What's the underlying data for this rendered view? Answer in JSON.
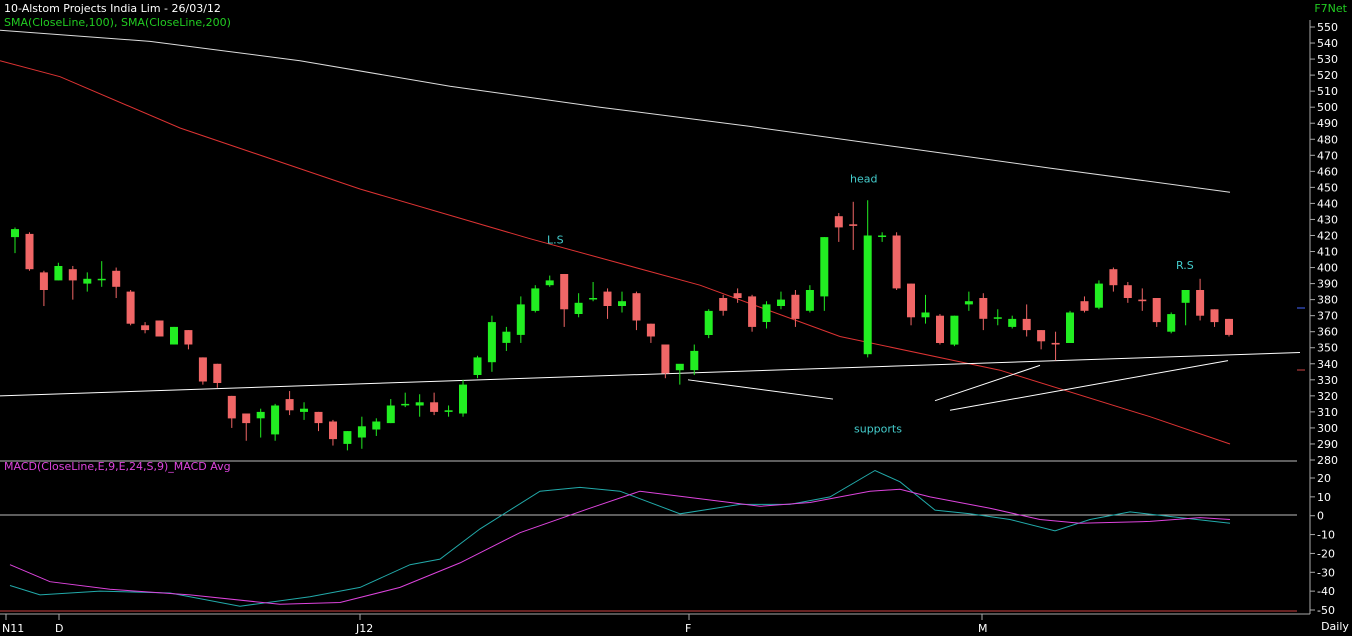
{
  "header": {
    "title": "10-Alstom Projects India Lim - 26/03/12",
    "indicators": "SMA(CloseLine,100), SMA(CloseLine,200)",
    "brand": "F7Net",
    "period": "Daily"
  },
  "colors": {
    "background": "#000000",
    "up": "#22ee22",
    "down": "#f06666",
    "sma100": "#dd3333",
    "sma200": "#dddddd",
    "macd": "#22aaaa",
    "macd_avg": "#dd44dd",
    "text_header": "#ffffff",
    "text_green": "#22cc22",
    "annotation": "#44cccc",
    "axis": "#aaaaaa"
  },
  "chart_data": [
    {
      "type": "candlestick",
      "title": "10-Alstom Projects India Lim - 26/03/12",
      "ylim": [
        280,
        550
      ],
      "yticks": [
        280,
        290,
        300,
        310,
        320,
        330,
        340,
        350,
        360,
        370,
        380,
        390,
        400,
        410,
        420,
        430,
        440,
        450,
        460,
        470,
        480,
        490,
        500,
        510,
        520,
        530,
        540,
        550
      ],
      "xtick_labels": [
        "N11",
        "D",
        "J12",
        "F",
        "M"
      ],
      "candles": [
        {
          "o": 419,
          "h": 425,
          "l": 409,
          "c": 424
        },
        {
          "o": 421,
          "h": 422,
          "l": 398,
          "c": 399
        },
        {
          "o": 397,
          "h": 398,
          "l": 376,
          "c": 386
        },
        {
          "o": 392,
          "h": 403,
          "l": 392,
          "c": 401
        },
        {
          "o": 399,
          "h": 401,
          "l": 380,
          "c": 392
        },
        {
          "o": 390,
          "h": 397,
          "l": 385,
          "c": 393
        },
        {
          "o": 393,
          "h": 404,
          "l": 388,
          "c": 393
        },
        {
          "o": 398,
          "h": 400,
          "l": 381,
          "c": 388
        },
        {
          "o": 385,
          "h": 386,
          "l": 364,
          "c": 365
        },
        {
          "o": 364,
          "h": 366,
          "l": 359,
          "c": 361
        },
        {
          "o": 367,
          "h": 367,
          "l": 357,
          "c": 357
        },
        {
          "o": 352,
          "h": 363,
          "l": 352,
          "c": 363
        },
        {
          "o": 361,
          "h": 361,
          "l": 349,
          "c": 352
        },
        {
          "o": 344,
          "h": 344,
          "l": 327,
          "c": 329
        },
        {
          "o": 340,
          "h": 340,
          "l": 325,
          "c": 328
        },
        {
          "o": 320,
          "h": 320,
          "l": 300,
          "c": 306
        },
        {
          "o": 309,
          "h": 309,
          "l": 292,
          "c": 303
        },
        {
          "o": 306,
          "h": 312,
          "l": 294,
          "c": 310
        },
        {
          "o": 296,
          "h": 315,
          "l": 292,
          "c": 314
        },
        {
          "o": 318,
          "h": 323,
          "l": 308,
          "c": 311
        },
        {
          "o": 310,
          "h": 316,
          "l": 305,
          "c": 312
        },
        {
          "o": 310,
          "h": 310,
          "l": 298,
          "c": 303
        },
        {
          "o": 304,
          "h": 305,
          "l": 289,
          "c": 293
        },
        {
          "o": 290,
          "h": 298,
          "l": 286,
          "c": 298
        },
        {
          "o": 294,
          "h": 307,
          "l": 287,
          "c": 301
        },
        {
          "o": 299,
          "h": 306,
          "l": 295,
          "c": 304
        },
        {
          "o": 303,
          "h": 318,
          "l": 303,
          "c": 314
        },
        {
          "o": 315,
          "h": 322,
          "l": 313,
          "c": 315
        },
        {
          "o": 314,
          "h": 321,
          "l": 307,
          "c": 316
        },
        {
          "o": 316,
          "h": 322,
          "l": 308,
          "c": 310
        },
        {
          "o": 310,
          "h": 314,
          "l": 307,
          "c": 311
        },
        {
          "o": 309,
          "h": 330,
          "l": 307,
          "c": 327
        },
        {
          "o": 333,
          "h": 345,
          "l": 331,
          "c": 344
        },
        {
          "o": 341,
          "h": 370,
          "l": 335,
          "c": 366
        },
        {
          "o": 353,
          "h": 363,
          "l": 348,
          "c": 360
        },
        {
          "o": 358,
          "h": 382,
          "l": 353,
          "c": 377
        },
        {
          "o": 373,
          "h": 389,
          "l": 372,
          "c": 387
        },
        {
          "o": 389,
          "h": 395,
          "l": 388,
          "c": 392
        },
        {
          "o": 396,
          "h": 396,
          "l": 363,
          "c": 374
        },
        {
          "o": 371,
          "h": 384,
          "l": 369,
          "c": 378
        },
        {
          "o": 381,
          "h": 391,
          "l": 379,
          "c": 381
        },
        {
          "o": 385,
          "h": 387,
          "l": 368,
          "c": 376
        },
        {
          "o": 376,
          "h": 385,
          "l": 372,
          "c": 379
        },
        {
          "o": 384,
          "h": 385,
          "l": 361,
          "c": 367
        },
        {
          "o": 365,
          "h": 365,
          "l": 353,
          "c": 357
        },
        {
          "o": 352,
          "h": 352,
          "l": 331,
          "c": 334
        },
        {
          "o": 336,
          "h": 339,
          "l": 327,
          "c": 340
        },
        {
          "o": 336,
          "h": 352,
          "l": 333,
          "c": 348
        },
        {
          "o": 358,
          "h": 374,
          "l": 356,
          "c": 373
        },
        {
          "o": 381,
          "h": 383,
          "l": 370,
          "c": 373
        },
        {
          "o": 384,
          "h": 387,
          "l": 378,
          "c": 381
        },
        {
          "o": 382,
          "h": 383,
          "l": 360,
          "c": 363
        },
        {
          "o": 366,
          "h": 379,
          "l": 362,
          "c": 377
        },
        {
          "o": 376,
          "h": 385,
          "l": 374,
          "c": 380
        },
        {
          "o": 383,
          "h": 386,
          "l": 363,
          "c": 368
        },
        {
          "o": 373,
          "h": 389,
          "l": 372,
          "c": 386
        },
        {
          "o": 382,
          "h": 419,
          "l": 373,
          "c": 419
        },
        {
          "o": 432,
          "h": 434,
          "l": 416,
          "c": 425
        },
        {
          "o": 427,
          "h": 441,
          "l": 411,
          "c": 426
        },
        {
          "o": 346,
          "h": 442,
          "l": 344,
          "c": 420
        },
        {
          "o": 420,
          "h": 422,
          "l": 416,
          "c": 420
        },
        {
          "o": 420,
          "h": 422,
          "l": 386,
          "c": 387
        },
        {
          "o": 390,
          "h": 390,
          "l": 364,
          "c": 369
        },
        {
          "o": 369,
          "h": 383,
          "l": 365,
          "c": 372
        },
        {
          "o": 370,
          "h": 371,
          "l": 352,
          "c": 353
        },
        {
          "o": 352,
          "h": 370,
          "l": 351,
          "c": 370
        },
        {
          "o": 377,
          "h": 385,
          "l": 373,
          "c": 379
        },
        {
          "o": 381,
          "h": 384,
          "l": 361,
          "c": 368
        },
        {
          "o": 369,
          "h": 374,
          "l": 364,
          "c": 369
        },
        {
          "o": 363,
          "h": 370,
          "l": 362,
          "c": 368
        },
        {
          "o": 368,
          "h": 377,
          "l": 357,
          "c": 361
        },
        {
          "o": 361,
          "h": 361,
          "l": 349,
          "c": 354
        },
        {
          "o": 353,
          "h": 360,
          "l": 342,
          "c": 352
        },
        {
          "o": 353,
          "h": 373,
          "l": 353,
          "c": 372
        },
        {
          "o": 379,
          "h": 382,
          "l": 372,
          "c": 373
        },
        {
          "o": 375,
          "h": 392,
          "l": 374,
          "c": 390
        },
        {
          "o": 399,
          "h": 400,
          "l": 385,
          "c": 389
        },
        {
          "o": 389,
          "h": 391,
          "l": 378,
          "c": 381
        },
        {
          "o": 380,
          "h": 387,
          "l": 373,
          "c": 379
        },
        {
          "o": 381,
          "h": 381,
          "l": 363,
          "c": 366
        },
        {
          "o": 360,
          "h": 372,
          "l": 359,
          "c": 371
        },
        {
          "o": 378,
          "h": 386,
          "l": 364,
          "c": 386
        },
        {
          "o": 386,
          "h": 393,
          "l": 367,
          "c": 370
        },
        {
          "o": 374,
          "h": 374,
          "l": 363,
          "c": 366
        },
        {
          "o": 368,
          "h": 368,
          "l": 357,
          "c": 358
        }
      ],
      "sma100": [
        [
          0,
          529
        ],
        [
          60,
          519
        ],
        [
          180,
          487
        ],
        [
          360,
          449
        ],
        [
          530,
          418
        ],
        [
          700,
          389
        ],
        [
          840,
          357
        ],
        [
          1000,
          336
        ],
        [
          1150,
          307
        ],
        [
          1230,
          290
        ]
      ],
      "sma200": [
        [
          0,
          548
        ],
        [
          150,
          541
        ],
        [
          300,
          529
        ],
        [
          450,
          513
        ],
        [
          600,
          500
        ],
        [
          750,
          488
        ],
        [
          900,
          475
        ],
        [
          1050,
          462
        ],
        [
          1230,
          447
        ]
      ],
      "annotations": [
        {
          "text": "L.S",
          "x": 547,
          "y": 415
        },
        {
          "text": "head",
          "x": 850,
          "y": 453
        },
        {
          "text": "R.S",
          "x": 1176,
          "y": 399
        },
        {
          "text": "supports",
          "x": 854,
          "y": 297
        }
      ],
      "trendlines": [
        [
          [
            0,
            320
          ],
          [
            1300,
            347
          ]
        ],
        [
          [
            688,
            330
          ],
          [
            833,
            318
          ]
        ],
        [
          [
            935,
            317
          ],
          [
            1040,
            339
          ]
        ],
        [
          [
            950,
            311
          ],
          [
            1228,
            342
          ]
        ]
      ]
    },
    {
      "type": "line",
      "title": "MACD(CloseLine,E,9,E,24,S,9)_MACD Avg",
      "ylim": [
        -50,
        20
      ],
      "yticks": [
        -50,
        -40,
        -30,
        -20,
        -10,
        0,
        10,
        20
      ],
      "series": [
        {
          "name": "MACD",
          "values": [
            [
              10,
              -37
            ],
            [
              40,
              -42
            ],
            [
              100,
              -40
            ],
            [
              170,
              -41
            ],
            [
              240,
              -48
            ],
            [
              310,
              -43
            ],
            [
              360,
              -38
            ],
            [
              410,
              -26
            ],
            [
              440,
              -23
            ],
            [
              480,
              -7
            ],
            [
              540,
              13
            ],
            [
              580,
              15
            ],
            [
              620,
              13
            ],
            [
              680,
              1
            ],
            [
              740,
              6
            ],
            [
              790,
              6
            ],
            [
              830,
              10
            ],
            [
              875,
              24
            ],
            [
              900,
              18
            ],
            [
              935,
              3
            ],
            [
              970,
              1
            ],
            [
              1010,
              -2
            ],
            [
              1055,
              -8
            ],
            [
              1090,
              -2
            ],
            [
              1130,
              2
            ],
            [
              1180,
              -1
            ],
            [
              1230,
              -4
            ]
          ]
        },
        {
          "name": "Avg",
          "values": [
            [
              10,
              -26
            ],
            [
              50,
              -35
            ],
            [
              110,
              -39
            ],
            [
              190,
              -42
            ],
            [
              280,
              -47
            ],
            [
              340,
              -46
            ],
            [
              400,
              -38
            ],
            [
              460,
              -25
            ],
            [
              520,
              -9
            ],
            [
              590,
              4
            ],
            [
              640,
              13
            ],
            [
              700,
              9
            ],
            [
              760,
              5
            ],
            [
              810,
              7
            ],
            [
              870,
              13
            ],
            [
              900,
              14
            ],
            [
              930,
              10
            ],
            [
              990,
              4
            ],
            [
              1040,
              -2
            ],
            [
              1080,
              -4
            ],
            [
              1150,
              -3
            ],
            [
              1200,
              -1
            ],
            [
              1230,
              -2
            ]
          ]
        }
      ]
    }
  ]
}
